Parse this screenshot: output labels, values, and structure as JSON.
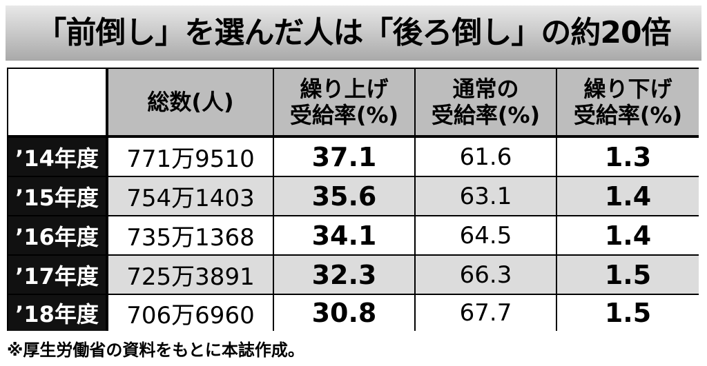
{
  "title": "「前倒し」を選んだ人は「後ろ倒し」の約20倍",
  "table": {
    "columns": [
      {
        "lines": [
          "総数(人)"
        ]
      },
      {
        "lines": [
          "繰り上げ",
          "受給率(%)"
        ]
      },
      {
        "lines": [
          "通常の",
          "受給率(%)"
        ]
      },
      {
        "lines": [
          "繰り下げ",
          "受給率(%)"
        ]
      }
    ],
    "rows": [
      {
        "label": "’14年度",
        "cells": [
          "771万9510",
          "37.1",
          "61.6",
          "1.3"
        ]
      },
      {
        "label": "’15年度",
        "cells": [
          "754万1403",
          "35.6",
          "63.1",
          "1.4"
        ]
      },
      {
        "label": "’16年度",
        "cells": [
          "735万1368",
          "34.1",
          "64.5",
          "1.4"
        ]
      },
      {
        "label": "’17年度",
        "cells": [
          "725万3891",
          "32.3",
          "66.3",
          "1.5"
        ]
      },
      {
        "label": "’18年度",
        "cells": [
          "706万6960",
          "30.8",
          "67.7",
          "1.5"
        ]
      }
    ]
  },
  "footnote": "※厚生労働省の資料をもとに本誌作成。"
}
